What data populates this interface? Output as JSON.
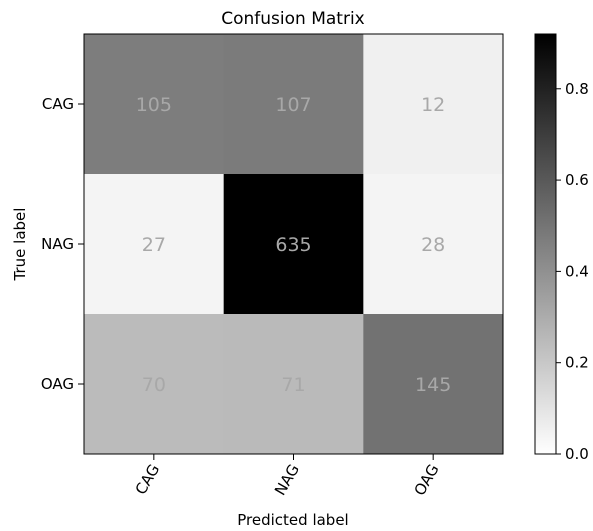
{
  "chart_data": {
    "type": "heatmap",
    "title": "Confusion Matrix",
    "xlabel": "Predicted label",
    "ylabel": "True label",
    "x_categories": [
      "CAG",
      "NAG",
      "OAG"
    ],
    "y_categories": [
      "CAG",
      "NAG",
      "OAG"
    ],
    "values": [
      [
        105,
        107,
        12
      ],
      [
        27,
        635,
        28
      ],
      [
        70,
        71,
        145
      ]
    ],
    "normalized": [
      [
        0.469,
        0.478,
        0.054
      ],
      [
        0.039,
        0.92,
        0.041
      ],
      [
        0.245,
        0.248,
        0.507
      ]
    ],
    "colormap": "Greys",
    "colorbar": {
      "range": [
        0.0,
        0.92
      ],
      "ticks": [
        0.0,
        0.2,
        0.4,
        0.6,
        0.8
      ],
      "tick_labels": [
        "0.0",
        "0.2",
        "0.4",
        "0.6",
        "0.8"
      ]
    },
    "cell_text_color": "#a8a8a8",
    "x_tick_rotation": 60
  }
}
